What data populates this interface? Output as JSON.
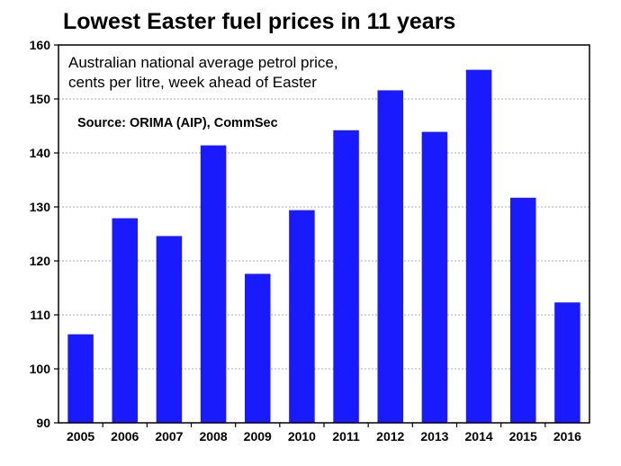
{
  "chart_data": {
    "type": "bar",
    "title": "Lowest Easter fuel prices in 11 years",
    "subtitle_lines": [
      "Australian national average petrol price,",
      "cents per litre, week ahead of Easter"
    ],
    "source": "Source: ORIMA (AIP), CommSec",
    "xlabel": "",
    "ylabel": "",
    "categories": [
      "2005",
      "2006",
      "2007",
      "2008",
      "2009",
      "2010",
      "2011",
      "2012",
      "2013",
      "2014",
      "2015",
      "2016"
    ],
    "values": [
      106.4,
      127.9,
      124.6,
      141.4,
      117.6,
      129.4,
      144.2,
      151.6,
      143.9,
      155.4,
      131.7,
      112.3
    ],
    "ylim": [
      90,
      160
    ],
    "yticks": [
      90,
      100,
      110,
      120,
      130,
      140,
      150,
      160
    ],
    "grid": true,
    "legend": "none",
    "colors": {
      "bar": "#1a1aff",
      "grid": "#a8a8a8",
      "axis": "#000000"
    }
  }
}
